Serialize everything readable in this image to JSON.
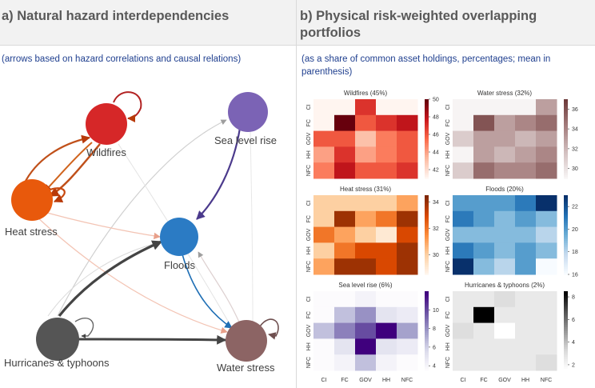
{
  "left": {
    "title": "a) Natural hazard interdependencies",
    "subtitle": "(arrows based on hazard correlations and causal relations)",
    "nodes": [
      {
        "id": "wildfires",
        "label": "Wildfires",
        "color": "#d62728"
      },
      {
        "id": "sea_level",
        "label": "Sea level rise",
        "color": "#7b63b5"
      },
      {
        "id": "heat",
        "label": "Heat stress",
        "color": "#e8590c"
      },
      {
        "id": "floods",
        "label": "Floods",
        "color": "#2b7bc4"
      },
      {
        "id": "hurricanes",
        "label": "Hurricanes & typhoons",
        "color": "#555555"
      },
      {
        "id": "water",
        "label": "Water stress",
        "color": "#8c6464"
      }
    ]
  },
  "right": {
    "title_line1": "b) Physical risk-weighted overlapping",
    "title_line2": "portfolios",
    "subtitle_line1": "(as a share of common asset holdings, percentages; mean in",
    "subtitle_line2": "parenthesis)"
  },
  "chart_data": [
    {
      "type": "heatmap",
      "title": "Wildfires (45%)",
      "categories": [
        "CI",
        "FC",
        "GOV",
        "HH",
        "NFC"
      ],
      "ticks": [
        "42",
        "44",
        "46",
        "48",
        "50"
      ],
      "range": [
        41,
        50
      ],
      "colors": [
        "#fff5f0",
        "#fcbba1",
        "#fb6a4a",
        "#cb181d",
        "#67000d"
      ],
      "values": [
        [
          41,
          41,
          47,
          41,
          41
        ],
        [
          41,
          50,
          46,
          47,
          48
        ],
        [
          46,
          46,
          43,
          45,
          46
        ],
        [
          44,
          47,
          44,
          45,
          46
        ],
        [
          45,
          48,
          46,
          46,
          47
        ]
      ]
    },
    {
      "type": "heatmap",
      "title": "Water stress (32%)",
      "categories": [
        "CI",
        "FC",
        "GOV",
        "HH",
        "NFC"
      ],
      "ticks": [
        "30",
        "32",
        "34",
        "36"
      ],
      "range": [
        29,
        37
      ],
      "colors": [
        "#f7f4f4",
        "#d2bfbf",
        "#a57e7e",
        "#6e3b3b"
      ],
      "values": [
        [
          29,
          29,
          29,
          29,
          33
        ],
        [
          29,
          36,
          33,
          34,
          35
        ],
        [
          31,
          33,
          33,
          32,
          33
        ],
        [
          29,
          33,
          32,
          33,
          34
        ],
        [
          31,
          35,
          34,
          34,
          35
        ]
      ]
    },
    {
      "type": "heatmap",
      "title": "Heat stress (31%)",
      "categories": [
        "CI",
        "FC",
        "GOV",
        "HH",
        "NFC"
      ],
      "ticks": [
        "30",
        "32",
        "34"
      ],
      "range": [
        28.5,
        34.5
      ],
      "colors": [
        "#fff5eb",
        "#fdd0a2",
        "#fd8d3c",
        "#d94801",
        "#7f2704"
      ],
      "values": [
        [
          30,
          30,
          30,
          30,
          31
        ],
        [
          30,
          34,
          31,
          32,
          34
        ],
        [
          32,
          31,
          30,
          29,
          33
        ],
        [
          30,
          32,
          33,
          33,
          34
        ],
        [
          31,
          34,
          34,
          33,
          34
        ]
      ]
    },
    {
      "type": "heatmap",
      "title": "Floods (20%)",
      "categories": [
        "CI",
        "FC",
        "GOV",
        "HH",
        "NFC"
      ],
      "ticks": [
        "16",
        "18",
        "20",
        "22"
      ],
      "range": [
        16,
        23
      ],
      "colors": [
        "#f7fbff",
        "#c6dbef",
        "#6baed6",
        "#2171b5",
        "#08306b"
      ],
      "values": [
        [
          20,
          20,
          20,
          21,
          23
        ],
        [
          21,
          20,
          19,
          20,
          19
        ],
        [
          19,
          19,
          19,
          19,
          18
        ],
        [
          21,
          20,
          19,
          20,
          19
        ],
        [
          23,
          19,
          18,
          20,
          16
        ]
      ]
    },
    {
      "type": "heatmap",
      "title": "Sea level rise (6%)",
      "categories": [
        "CI",
        "FC",
        "GOV",
        "HH",
        "NFC"
      ],
      "ticks": [
        "4",
        "6",
        "8",
        "10"
      ],
      "range": [
        3.5,
        12
      ],
      "colors": [
        "#fcfbfd",
        "#dadaeb",
        "#9e9ac8",
        "#6a51a3",
        "#3f007d"
      ],
      "values": [
        [
          3.5,
          3.5,
          4,
          3.5,
          3.5
        ],
        [
          3.5,
          6.5,
          8,
          5,
          4.5
        ],
        [
          6.5,
          8.5,
          10,
          12,
          7.5
        ],
        [
          3.5,
          5,
          12,
          5,
          4.5
        ],
        [
          3.5,
          4,
          6.5,
          4,
          3.5
        ]
      ]
    },
    {
      "type": "heatmap",
      "title": "Hurricanes & typhoons (2%)",
      "categories": [
        "CI",
        "FC",
        "GOV",
        "HH",
        "NFC"
      ],
      "ticks": [
        "2",
        "4",
        "6",
        "8"
      ],
      "range": [
        1.5,
        8.5
      ],
      "colors": [
        "#ffffff",
        "#d9d9d9",
        "#969696",
        "#525252",
        "#000000"
      ],
      "values": [
        [
          2.5,
          2.5,
          3,
          2.5,
          2.5
        ],
        [
          2.5,
          8.5,
          2.5,
          2.5,
          2.5
        ],
        [
          3,
          2.5,
          1.5,
          2.5,
          2.5
        ],
        [
          2.5,
          2.5,
          2.5,
          2.5,
          2.5
        ],
        [
          2.5,
          2.5,
          2.5,
          2.5,
          3
        ]
      ]
    }
  ]
}
